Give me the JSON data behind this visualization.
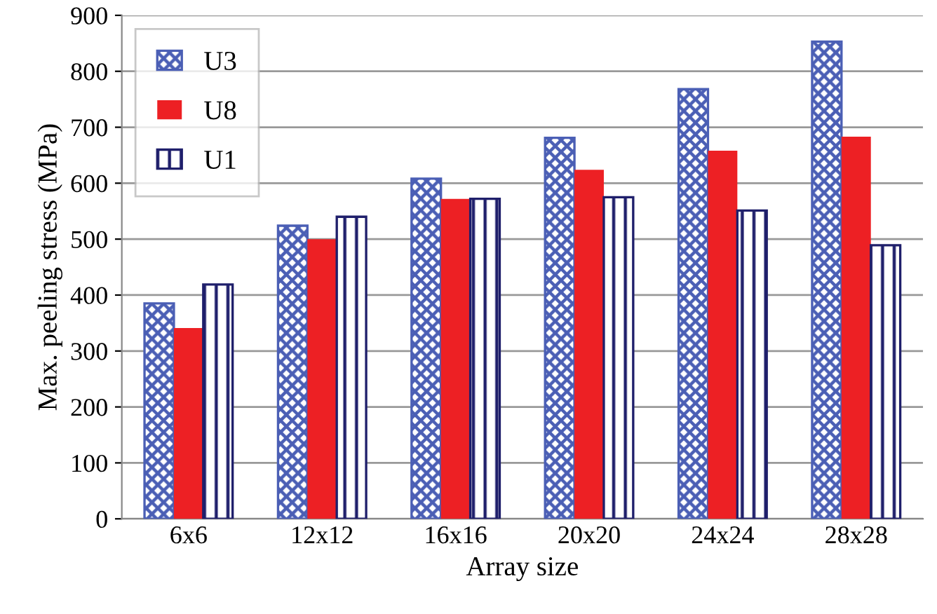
{
  "chart_data": {
    "type": "bar",
    "xlabel": "Array size",
    "ylabel": "Max. peeling stress (MPa)",
    "categories": [
      "6x6",
      "12x12",
      "16x16",
      "20x20",
      "24x24",
      "28x28"
    ],
    "series": [
      {
        "name": "U3",
        "color": "#4b5fb5",
        "values": [
          385,
          524,
          608,
          681,
          768,
          853
        ]
      },
      {
        "name": "U8",
        "color": "#ed2024",
        "values": [
          341,
          500,
          572,
          624,
          658,
          683
        ]
      },
      {
        "name": "U1",
        "color": "#1f1f6b",
        "values": [
          419,
          540,
          572,
          575,
          551,
          489
        ]
      }
    ],
    "ylim": [
      0,
      900
    ],
    "yticks": [
      0,
      100,
      200,
      300,
      400,
      500,
      600,
      700,
      800,
      900
    ],
    "grid": "y",
    "legend": "top left"
  }
}
